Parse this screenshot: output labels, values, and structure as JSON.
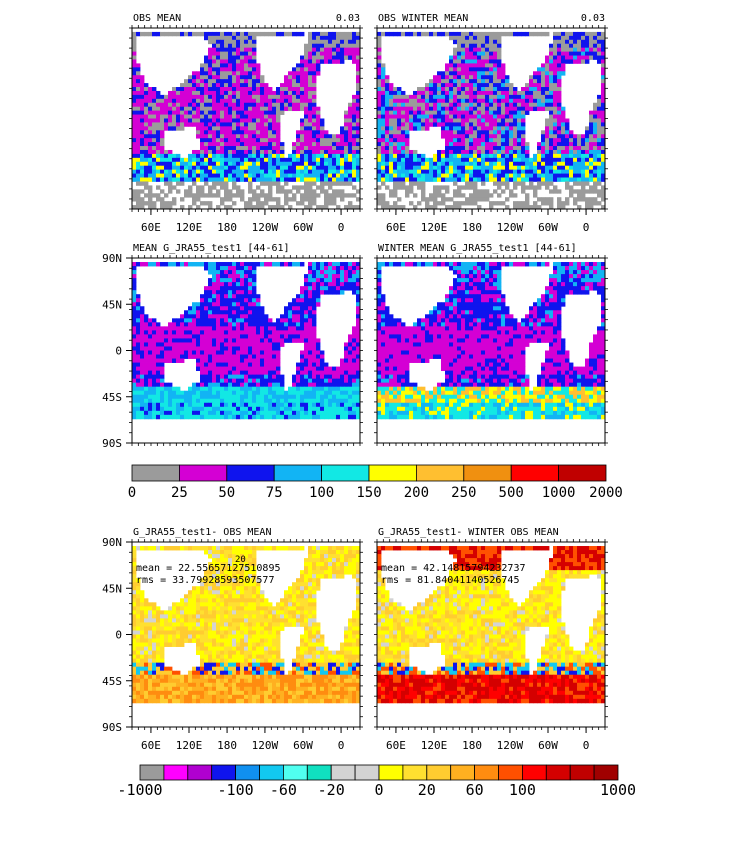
{
  "chart_data": [
    {
      "type": "heatmap",
      "title": "OBS MEAN",
      "corner_label": "0.03",
      "x_ticks": [
        "60E",
        "120E",
        "180",
        "120W",
        "60W",
        "0"
      ],
      "y_ticks": []
    },
    {
      "type": "heatmap",
      "title": "OBS WINTER MEAN",
      "corner_label": "0.03",
      "x_ticks": [
        "60E",
        "120E",
        "180",
        "120W",
        "60W",
        "0"
      ],
      "y_ticks": []
    },
    {
      "type": "heatmap",
      "title": "MEAN G_JRA55_test1 [44-61]",
      "x_ticks": [],
      "y_ticks": [
        "90N",
        "45N",
        "0",
        "45S",
        "90S"
      ]
    },
    {
      "type": "heatmap",
      "title": "WINTER MEAN G_JRA55_test1 [44-61]",
      "x_ticks": [],
      "y_ticks": []
    },
    {
      "type": "heatmap",
      "title": "G_JRA55_test1- OBS MEAN",
      "annotations": [
        "mean = 22.55657127510895",
        "rms = 33.79928593507577",
        "20"
      ],
      "x_ticks": [
        "60E",
        "120E",
        "180",
        "120W",
        "60W",
        "0"
      ],
      "y_ticks": [
        "90N",
        "45N",
        "0",
        "45S",
        "90S"
      ]
    },
    {
      "type": "heatmap",
      "title": "G_JRA55_test1- WINTER OBS MEAN",
      "annotations": [
        "mean = 42.14815794232737",
        "rms = 81.84041140526745"
      ],
      "x_ticks": [
        "60E",
        "120E",
        "180",
        "120W",
        "60W",
        "0"
      ],
      "y_ticks": []
    }
  ],
  "colorbars": [
    {
      "labels": [
        "0",
        "25",
        "50",
        "75",
        "100",
        "150",
        "200",
        "250",
        "500",
        "1000",
        "2000"
      ],
      "colors": [
        "#9b9b9b",
        "#d400d4",
        "#0f14ee",
        "#12b4f4",
        "#12e8e4",
        "#ffff00",
        "#ffbf30",
        "#f09010",
        "#ff0000",
        "#c00000"
      ]
    },
    {
      "labels": [
        "-1000",
        "-100",
        "-60",
        "-20",
        "0",
        "20",
        "60",
        "100",
        "1000"
      ],
      "colors": [
        "#9b9b9b",
        "#ff00ff",
        "#b000d0",
        "#0f14ee",
        "#1090f0",
        "#12c8f0",
        "#50fff0",
        "#10e0c0",
        "#d3d3d3",
        "#d3d3d3",
        "#ffff00",
        "#ffe030",
        "#ffcc30",
        "#ffb020",
        "#ff8c10",
        "#ff5000",
        "#ff0000",
        "#d40000",
        "#c00000",
        "#a00000"
      ]
    }
  ]
}
